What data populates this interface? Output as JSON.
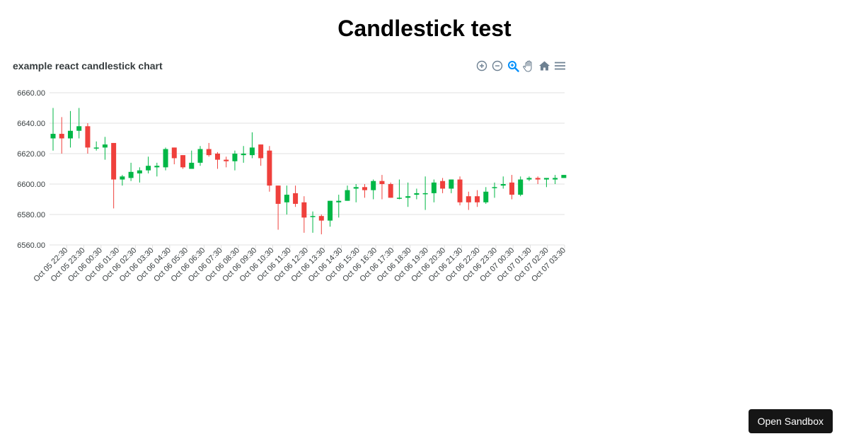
{
  "page": {
    "title": "Candlestick test",
    "sandbox_button": "Open Sandbox"
  },
  "toolbar": {
    "icons": [
      "zoom-in-icon",
      "zoom-out-icon",
      "selection-zoom-icon",
      "pan-hand-icon",
      "reset-home-icon",
      "menu-icon"
    ]
  },
  "colors": {
    "up": "#00b746",
    "down": "#ef403c",
    "grid": "#e0e0e0",
    "accent": "#008ffb",
    "icon": "#6e8192"
  },
  "chart_data": {
    "type": "candlestick",
    "title": "example react candlestick chart",
    "ylim": [
      6560,
      6660
    ],
    "yticks": [
      6560,
      6580,
      6600,
      6620,
      6640,
      6660
    ],
    "ytick_labels": [
      "6560.00",
      "6580.00",
      "6600.00",
      "6620.00",
      "6640.00",
      "6660.00"
    ],
    "grid": true,
    "x_ticks": [
      "Oct 05 22:30",
      "Oct 05 23:30",
      "Oct 06 00:30",
      "Oct 06 01:30",
      "Oct 06 02:30",
      "Oct 06 03:30",
      "Oct 06 04:30",
      "Oct 06 05:30",
      "Oct 06 06:30",
      "Oct 06 07:30",
      "Oct 06 08:30",
      "Oct 06 09:30",
      "Oct 06 10:30",
      "Oct 06 11:30",
      "Oct 06 12:30",
      "Oct 06 13:30",
      "Oct 06 14:30",
      "Oct 06 15:30",
      "Oct 06 16:30",
      "Oct 06 17:30",
      "Oct 06 18:30",
      "Oct 06 19:30",
      "Oct 06 20:30",
      "Oct 06 21:30",
      "Oct 06 22:30",
      "Oct 06 23:30",
      "Oct 07 00:30",
      "Oct 07 01:30",
      "Oct 07 02:30",
      "Oct 07 03:30"
    ],
    "ohlc": [
      [
        6630,
        6650,
        6622,
        6633
      ],
      [
        6633,
        6644,
        6620,
        6630
      ],
      [
        6630,
        6648,
        6624,
        6635
      ],
      [
        6635,
        6650,
        6630,
        6638
      ],
      [
        6638,
        6640,
        6620,
        6624
      ],
      [
        6624,
        6628,
        6622,
        6624
      ],
      [
        6624,
        6631,
        6616,
        6626
      ],
      [
        6627,
        6627,
        6584,
        6603
      ],
      [
        6603,
        6606,
        6599,
        6605
      ],
      [
        6604,
        6614,
        6602,
        6608
      ],
      [
        6607,
        6611,
        6601,
        6609
      ],
      [
        6609,
        6618,
        6607,
        6612
      ],
      [
        6611,
        6614,
        6605,
        6612
      ],
      [
        6611,
        6624,
        6609,
        6623
      ],
      [
        6624,
        6624,
        6613,
        6617
      ],
      [
        6619,
        6619,
        6610,
        6611
      ],
      [
        6610,
        6622,
        6610,
        6614
      ],
      [
        6614,
        6625,
        6612,
        6623
      ],
      [
        6623,
        6627,
        6618,
        6619
      ],
      [
        6620,
        6621,
        6610,
        6616
      ],
      [
        6616,
        6618,
        6611,
        6615
      ],
      [
        6615,
        6622,
        6609,
        6620
      ],
      [
        6619,
        6625,
        6614,
        6620
      ],
      [
        6619,
        6634,
        6617,
        6624
      ],
      [
        6626,
        6626,
        6612,
        6617
      ],
      [
        6622,
        6625,
        6595,
        6599
      ],
      [
        6599,
        6599,
        6570,
        6587
      ],
      [
        6588,
        6599,
        6580,
        6593
      ],
      [
        6594,
        6599,
        6585,
        6587
      ],
      [
        6588,
        6592,
        6568,
        6578
      ],
      [
        6579,
        6582,
        6568,
        6579
      ],
      [
        6579,
        6580,
        6567,
        6576
      ],
      [
        6576,
        6589,
        6572,
        6589
      ],
      [
        6588,
        6593,
        6578,
        6589
      ],
      [
        6589,
        6599,
        6589,
        6596
      ],
      [
        6597,
        6600,
        6588,
        6598
      ],
      [
        6598,
        6600,
        6591,
        6596
      ],
      [
        6596,
        6603,
        6590,
        6602
      ],
      [
        6602,
        6606,
        6590,
        6600
      ],
      [
        6600,
        6601,
        6591,
        6591
      ],
      [
        6591,
        6603,
        6590,
        6591
      ],
      [
        6591,
        6601,
        6585,
        6592
      ],
      [
        6593,
        6597,
        6590,
        6594
      ],
      [
        6594,
        6605,
        6583,
        6594
      ],
      [
        6594,
        6603,
        6588,
        6601
      ],
      [
        6602,
        6604,
        6594,
        6597
      ],
      [
        6597,
        6603,
        6594,
        6603
      ],
      [
        6603,
        6605,
        6586,
        6588
      ],
      [
        6592,
        6595,
        6583,
        6588
      ],
      [
        6592,
        6596,
        6585,
        6588
      ],
      [
        6588,
        6598,
        6587,
        6595
      ],
      [
        6598,
        6601,
        6591,
        6598
      ],
      [
        6599,
        6605,
        6597,
        6600
      ],
      [
        6601,
        6606,
        6590,
        6593
      ],
      [
        6593,
        6605,
        6592,
        6603
      ],
      [
        6603,
        6605,
        6602,
        6604
      ],
      [
        6604,
        6605,
        6600,
        6603
      ],
      [
        6603,
        6604,
        6598,
        6604
      ],
      [
        6603,
        6606,
        6600,
        6604
      ],
      [
        6604,
        6606,
        6604,
        6606
      ]
    ]
  }
}
